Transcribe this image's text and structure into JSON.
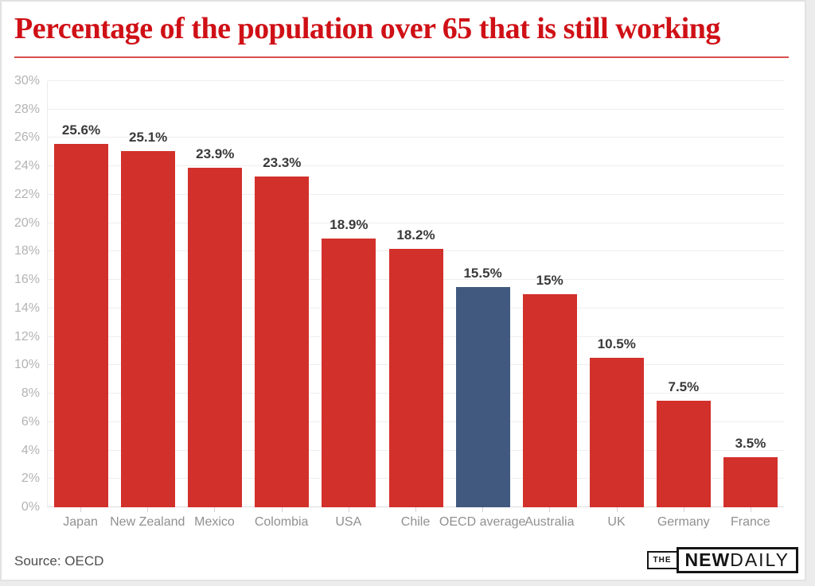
{
  "header": {
    "title": "Percentage of the population over 65 that is still working",
    "title_color": "#cf1016"
  },
  "chart_data": {
    "type": "bar",
    "title": "Percentage of the population over 65 that is still working",
    "categories": [
      "Japan",
      "New Zealand",
      "Mexico",
      "Colombia",
      "USA",
      "Chile",
      "OECD average",
      "Australia",
      "UK",
      "Germany",
      "France"
    ],
    "values": [
      25.6,
      25.1,
      23.9,
      23.3,
      18.9,
      18.2,
      15.5,
      15,
      10.5,
      7.5,
      3.5
    ],
    "value_labels": [
      "25.6%",
      "25.1%",
      "23.9%",
      "23.3%",
      "18.9%",
      "18.2%",
      "15.5%",
      "15%",
      "10.5%",
      "7.5%",
      "3.5%"
    ],
    "highlight_index": 6,
    "bar_color": "#d2302b",
    "highlight_color": "#41597f",
    "xlabel": "",
    "ylabel": "",
    "ylim": [
      0,
      30
    ],
    "ytick_step": 2,
    "ytick_labels": [
      "0%",
      "2%",
      "4%",
      "6%",
      "8%",
      "10%",
      "12%",
      "14%",
      "16%",
      "18%",
      "20%",
      "22%",
      "24%",
      "26%",
      "28%",
      "30%"
    ],
    "grid": true,
    "legend_position": "none"
  },
  "footer": {
    "source": "Source: OECD",
    "logo": {
      "the": "THE",
      "new": "NEW",
      "daily": "DAILY"
    }
  }
}
